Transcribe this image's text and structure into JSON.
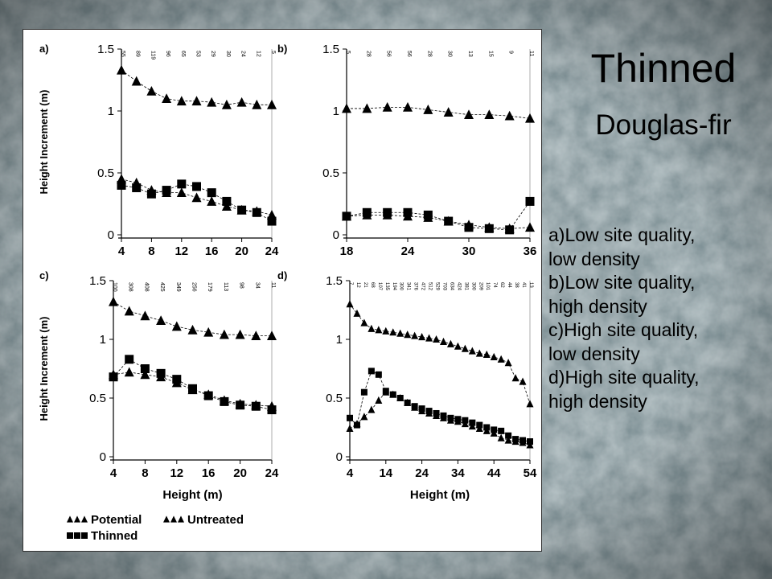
{
  "slide": {
    "title": "Thinned",
    "subtitle": "Douglas-fir",
    "captions": [
      "a)Low site quality,",
      "low density",
      "b)Low site quality,",
      "high density",
      "c)High site quality,",
      "low density",
      "d)High site quality,",
      "high density"
    ]
  },
  "colors": {
    "background": "#8a9aa0",
    "panel": "#ffffff",
    "marker": "#000000"
  },
  "chart_data": [
    {
      "panel": "a)",
      "type": "line",
      "ylabel": "Height Increment (m)",
      "xlabel": "",
      "xlim": [
        4,
        24
      ],
      "ylim": [
        0,
        1.5
      ],
      "xticks": [
        "4",
        "8",
        "12",
        "16",
        "20",
        "24"
      ],
      "yticks": [
        "0",
        "0.5",
        "1",
        "1.5"
      ],
      "counts": {
        "x": [
          4,
          6,
          8,
          10,
          12,
          14,
          16,
          18,
          20,
          22,
          24
        ],
        "labels": [
          "55",
          "89",
          "119",
          "96",
          "65",
          "53",
          "29",
          "30",
          "24",
          "12",
          "5"
        ]
      },
      "series": [
        {
          "name": "Potential",
          "marker": "triangle",
          "x": [
            4,
            6,
            8,
            10,
            12,
            14,
            16,
            18,
            20,
            22,
            24
          ],
          "values": [
            1.33,
            1.24,
            1.16,
            1.1,
            1.08,
            1.08,
            1.07,
            1.05,
            1.07,
            1.05,
            1.05
          ]
        },
        {
          "name": "Untreated",
          "marker": "triangle",
          "x": [
            4,
            6,
            8,
            10,
            12,
            14,
            16,
            18,
            20,
            22,
            24
          ],
          "values": [
            0.45,
            0.42,
            0.36,
            0.34,
            0.34,
            0.3,
            0.27,
            0.23,
            0.2,
            0.19,
            0.16
          ]
        },
        {
          "name": "Thinned",
          "marker": "square",
          "x": [
            4,
            6,
            8,
            10,
            12,
            14,
            16,
            18,
            20,
            22,
            24
          ],
          "values": [
            0.4,
            0.38,
            0.33,
            0.36,
            0.41,
            0.39,
            0.34,
            0.27,
            0.2,
            0.18,
            0.11
          ]
        }
      ]
    },
    {
      "panel": "b)",
      "type": "line",
      "ylabel": "",
      "xlabel": "",
      "xlim": [
        18,
        36
      ],
      "ylim": [
        0,
        1.5
      ],
      "xticks": [
        "18",
        "24",
        "30",
        "36"
      ],
      "yticks": [
        "0",
        "0.5",
        "1",
        "1.5"
      ],
      "counts": {
        "x": [
          18,
          20,
          22,
          24,
          26,
          28,
          30,
          32,
          34,
          36
        ],
        "labels": [
          "5",
          "28",
          "56",
          "56",
          "28",
          "30",
          "13",
          "15",
          "9",
          "11"
        ]
      },
      "series": [
        {
          "name": "Potential",
          "marker": "triangle",
          "x": [
            18,
            20,
            22,
            24,
            26,
            28,
            30,
            32,
            34,
            36
          ],
          "values": [
            1.02,
            1.02,
            1.03,
            1.03,
            1.01,
            0.99,
            0.97,
            0.97,
            0.96,
            0.94
          ]
        },
        {
          "name": "Untreated",
          "marker": "triangle",
          "x": [
            18,
            20,
            22,
            24,
            26,
            28,
            30,
            32,
            34,
            36
          ],
          "values": [
            0.15,
            0.16,
            0.16,
            0.15,
            0.14,
            0.11,
            0.08,
            0.06,
            0.05,
            0.06
          ]
        },
        {
          "name": "Thinned",
          "marker": "square",
          "x": [
            18,
            20,
            22,
            24,
            26,
            28,
            30,
            32,
            34,
            36
          ],
          "values": [
            0.15,
            0.18,
            0.18,
            0.18,
            0.16,
            0.11,
            0.06,
            0.05,
            0.04,
            0.27
          ]
        }
      ]
    },
    {
      "panel": "c)",
      "type": "line",
      "ylabel": "Height Increment (m)",
      "xlabel": "Height (m)",
      "xlim": [
        4,
        24
      ],
      "ylim": [
        0,
        1.5
      ],
      "xticks": [
        "4",
        "8",
        "12",
        "16",
        "20",
        "24"
      ],
      "yticks": [
        "0",
        "0.5",
        "1",
        "1.5"
      ],
      "counts": {
        "x": [
          4,
          6,
          8,
          10,
          12,
          14,
          16,
          18,
          20,
          22,
          24
        ],
        "labels": [
          "100",
          "308",
          "408",
          "425",
          "349",
          "256",
          "179",
          "113",
          "98",
          "34",
          "11"
        ]
      },
      "series": [
        {
          "name": "Potential",
          "marker": "triangle",
          "x": [
            4,
            6,
            8,
            10,
            12,
            14,
            16,
            18,
            20,
            22,
            24
          ],
          "values": [
            1.32,
            1.24,
            1.2,
            1.16,
            1.11,
            1.08,
            1.06,
            1.04,
            1.04,
            1.03,
            1.03
          ]
        },
        {
          "name": "Untreated",
          "marker": "triangle",
          "x": [
            4,
            6,
            8,
            10,
            12,
            14,
            16,
            18,
            20,
            22,
            24
          ],
          "values": [
            0.7,
            0.72,
            0.7,
            0.68,
            0.63,
            0.57,
            0.53,
            0.48,
            0.45,
            0.44,
            0.43
          ]
        },
        {
          "name": "Thinned",
          "marker": "square",
          "x": [
            4,
            6,
            8,
            10,
            12,
            14,
            16,
            18,
            20,
            22,
            24
          ],
          "values": [
            0.68,
            0.83,
            0.75,
            0.71,
            0.66,
            0.58,
            0.52,
            0.47,
            0.44,
            0.43,
            0.4
          ]
        }
      ]
    },
    {
      "panel": "d)",
      "type": "line",
      "ylabel": "",
      "xlabel": "Height (m)",
      "xlim": [
        4,
        54
      ],
      "ylim": [
        0,
        1.5
      ],
      "xticks": [
        "4",
        "14",
        "24",
        "34",
        "44",
        "54"
      ],
      "yticks": [
        "0",
        "0.5",
        "1",
        "1.5"
      ],
      "counts": {
        "x": [
          4,
          6,
          8,
          10,
          12,
          14,
          16,
          18,
          20,
          22,
          24,
          26,
          28,
          30,
          32,
          34,
          36,
          38,
          40,
          42,
          44,
          46,
          48,
          50,
          52,
          54
        ],
        "labels": [
          "7",
          "12",
          "21",
          "68",
          "107",
          "135",
          "194",
          "300",
          "341",
          "376",
          "472",
          "512",
          "529",
          "703",
          "634",
          "424",
          "381",
          "300",
          "209",
          "101",
          "74",
          "62",
          "44",
          "38",
          "41",
          "13"
        ]
      },
      "series": [
        {
          "name": "Potential",
          "marker": "triangle",
          "x": [
            4,
            6,
            8,
            10,
            12,
            14,
            16,
            18,
            20,
            22,
            24,
            26,
            28,
            30,
            32,
            34,
            36,
            38,
            40,
            42,
            44,
            46,
            48,
            50,
            52,
            54
          ],
          "values": [
            1.3,
            1.22,
            1.14,
            1.09,
            1.08,
            1.07,
            1.06,
            1.05,
            1.04,
            1.03,
            1.02,
            1.01,
            1.0,
            0.98,
            0.96,
            0.94,
            0.92,
            0.9,
            0.88,
            0.87,
            0.85,
            0.83,
            0.8,
            0.67,
            0.64,
            0.45
          ]
        },
        {
          "name": "Untreated",
          "marker": "triangle",
          "x": [
            4,
            6,
            8,
            10,
            12,
            14,
            16,
            18,
            20,
            22,
            24,
            26,
            28,
            30,
            32,
            34,
            36,
            38,
            40,
            42,
            44,
            46,
            48,
            50,
            52,
            54
          ],
          "values": [
            0.24,
            0.28,
            0.34,
            0.4,
            0.48,
            0.55,
            0.53,
            0.5,
            0.46,
            0.42,
            0.39,
            0.37,
            0.35,
            0.33,
            0.31,
            0.3,
            0.28,
            0.26,
            0.24,
            0.22,
            0.2,
            0.16,
            0.14,
            0.13,
            0.12,
            0.1
          ]
        },
        {
          "name": "Thinned",
          "marker": "square",
          "x": [
            4,
            6,
            8,
            10,
            12,
            14,
            16,
            18,
            20,
            22,
            24,
            26,
            28,
            30,
            32,
            34,
            36,
            38,
            40,
            42,
            44,
            46,
            48,
            50,
            52,
            54
          ],
          "values": [
            0.33,
            0.27,
            0.55,
            0.73,
            0.7,
            0.56,
            0.53,
            0.5,
            0.46,
            0.43,
            0.41,
            0.39,
            0.37,
            0.35,
            0.33,
            0.32,
            0.31,
            0.29,
            0.27,
            0.25,
            0.23,
            0.22,
            0.18,
            0.15,
            0.14,
            0.13
          ]
        }
      ]
    }
  ],
  "legend": [
    {
      "label": "Potential",
      "marker": "triangle"
    },
    {
      "label": "Untreated",
      "marker": "triangle"
    },
    {
      "label": "Thinned",
      "marker": "square"
    }
  ]
}
